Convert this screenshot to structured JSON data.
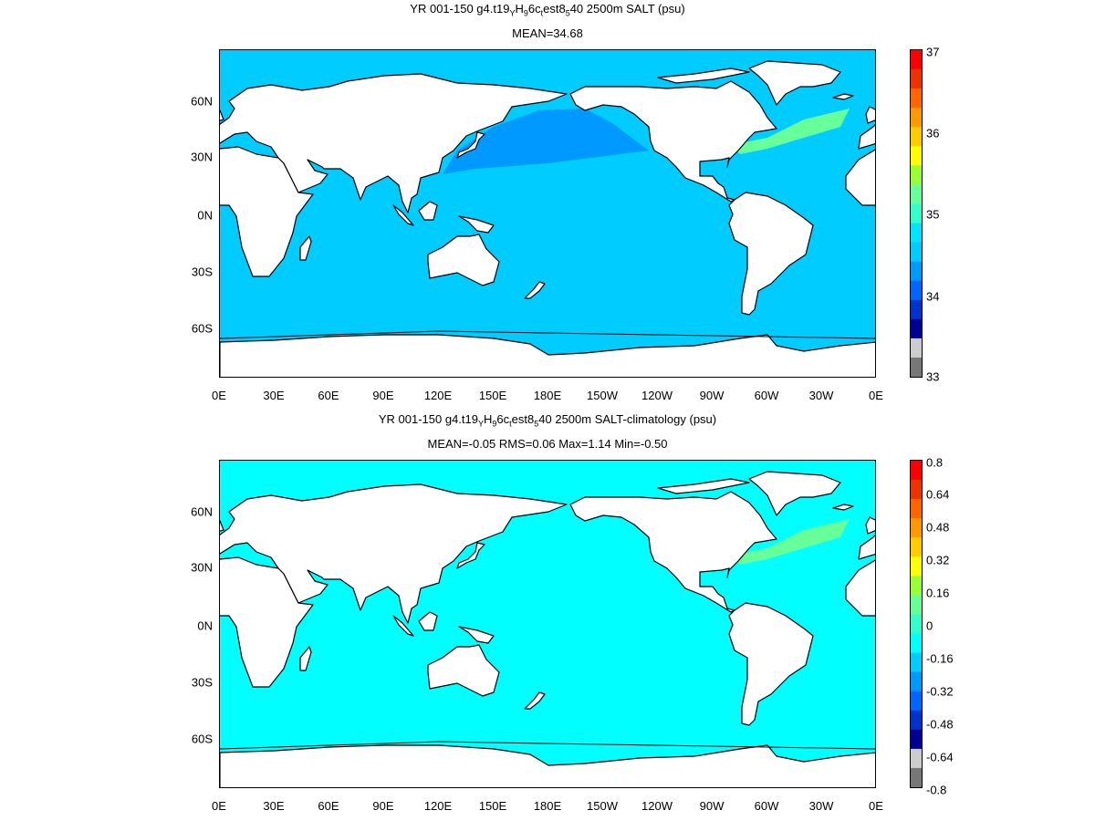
{
  "panels": [
    {
      "title_line1": "YR 001-150 g4.t19",
      "title_sub1": "Y",
      "title_mid1": "H",
      "title_sub2": "9",
      "title_mid2": "6c",
      "title_sub3": "t",
      "title_mid3": "est8",
      "title_sub4": "5",
      "title_end": "40 2500m SALT (psu)",
      "stats": "MEAN=34.68",
      "colorbar_ticks": [
        "37",
        "36",
        "35",
        "34",
        "33"
      ],
      "colorbar_colors": [
        "#ff0000",
        "#ee3300",
        "#ff6600",
        "#ff9900",
        "#ffcc00",
        "#ffff00",
        "#99ff33",
        "#66ff99",
        "#33ffcc",
        "#00e5ff",
        "#00ccff",
        "#0099ff",
        "#0066ff",
        "#0033cc",
        "#000099",
        "#cccccc",
        "#777777"
      ],
      "ocean_base_color": "#00ccff",
      "ocean_north_pacific_color": "#0099ff",
      "ocean_north_atlantic_color": "#66ff99"
    },
    {
      "title_line1": "YR 001-150 g4.t19",
      "title_sub1": "Y",
      "title_mid1": "H",
      "title_sub2": "9",
      "title_mid2": "6c",
      "title_sub3": "t",
      "title_mid3": "est8",
      "title_sub4": "5",
      "title_end": "40 2500m SALT-climatology (psu)",
      "stats": "MEAN=-0.05   RMS=0.06   Max=1.14   Min=-0.50",
      "colorbar_ticks": [
        "0.8",
        "0.64",
        "0.48",
        "0.32",
        "0.16",
        "0",
        "-0.16",
        "-0.32",
        "-0.48",
        "-0.64",
        "-0.8"
      ],
      "colorbar_colors": [
        "#ff0000",
        "#ee3300",
        "#ff6600",
        "#ff9900",
        "#ffcc00",
        "#ffff00",
        "#99ff33",
        "#66ff99",
        "#33ffcc",
        "#00ffff",
        "#00ccff",
        "#0099ff",
        "#0066ff",
        "#0033cc",
        "#000099",
        "#cccccc",
        "#777777"
      ],
      "ocean_base_color": "#00ffff",
      "ocean_north_pacific_color": "#00ffff",
      "ocean_north_atlantic_color": "#66ff99"
    }
  ],
  "lon_labels": [
    "0E",
    "30E",
    "60E",
    "90E",
    "120E",
    "150E",
    "180E",
    "150W",
    "120W",
    "90W",
    "60W",
    "30W",
    "0E"
  ],
  "lat_labels": [
    "60N",
    "30N",
    "0N",
    "30S",
    "60S"
  ],
  "land_color": "#ffffff",
  "coast_color": "#000000"
}
